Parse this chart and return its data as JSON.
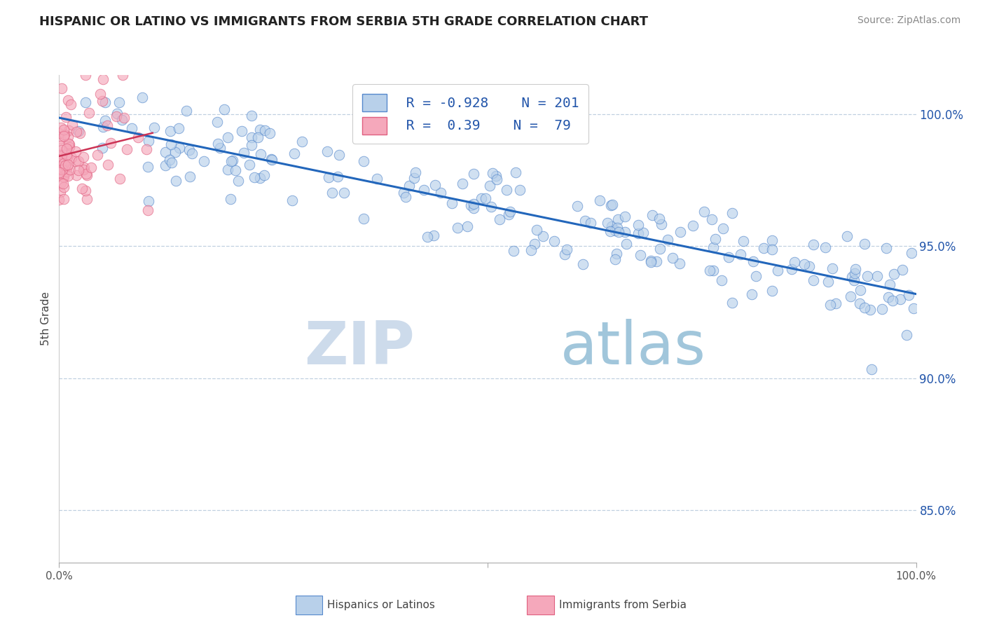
{
  "title": "HISPANIC OR LATINO VS IMMIGRANTS FROM SERBIA 5TH GRADE CORRELATION CHART",
  "source_text": "Source: ZipAtlas.com",
  "ylabel": "5th Grade",
  "x_min": 0.0,
  "x_max": 1.0,
  "y_min": 0.83,
  "y_max": 1.015,
  "y_ticks": [
    0.85,
    0.9,
    0.95,
    1.0
  ],
  "y_tick_labels": [
    "85.0%",
    "90.0%",
    "95.0%",
    "100.0%"
  ],
  "blue_R": -0.928,
  "blue_N": 201,
  "pink_R": 0.39,
  "pink_N": 79,
  "blue_color": "#b8d0ea",
  "pink_color": "#f5a8bb",
  "blue_edge_color": "#5588cc",
  "pink_edge_color": "#e06080",
  "blue_line_color": "#2266bb",
  "pink_line_color": "#cc3355",
  "legend_blue_label": "Hispanics or Latinos",
  "legend_pink_label": "Immigrants from Serbia",
  "watermark_zip": "ZIP",
  "watermark_atlas": "atlas",
  "background_color": "#ffffff",
  "grid_color": "#c0d0e0",
  "blue_seed": 12,
  "pink_seed": 5,
  "legend_text_color": "#2255aa"
}
